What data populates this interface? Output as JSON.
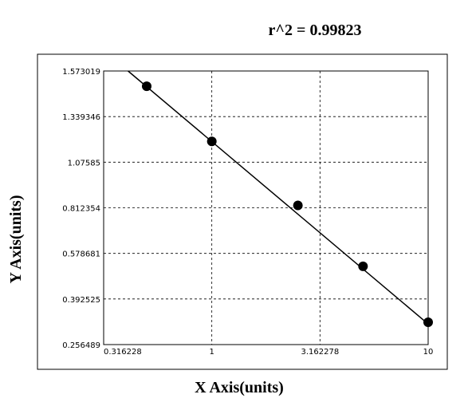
{
  "chart_data": {
    "type": "scatter",
    "title": "r^2 = 0.99823",
    "x_label": "X Axis(units)",
    "y_label": "Y Axis(units)",
    "x_scale": "log",
    "y_scale": "tick-spaced",
    "xlim": [
      0.316228,
      10
    ],
    "xticks": [
      0.316228,
      1,
      3.162278,
      10
    ],
    "ylim": [
      0.256489,
      1.573019
    ],
    "yticks": [
      0.256489,
      0.392525,
      0.578681,
      0.812354,
      1.07585,
      1.339346,
      1.573019
    ],
    "grid": true,
    "color": "#000000",
    "x": [
      0.5,
      1,
      2.5,
      5,
      10
    ],
    "values": [
      1.495,
      1.196,
      0.826,
      0.526,
      0.323
    ],
    "fit": {
      "x": [
        0.41,
        10
      ],
      "values": [
        1.573019,
        0.318
      ]
    }
  }
}
